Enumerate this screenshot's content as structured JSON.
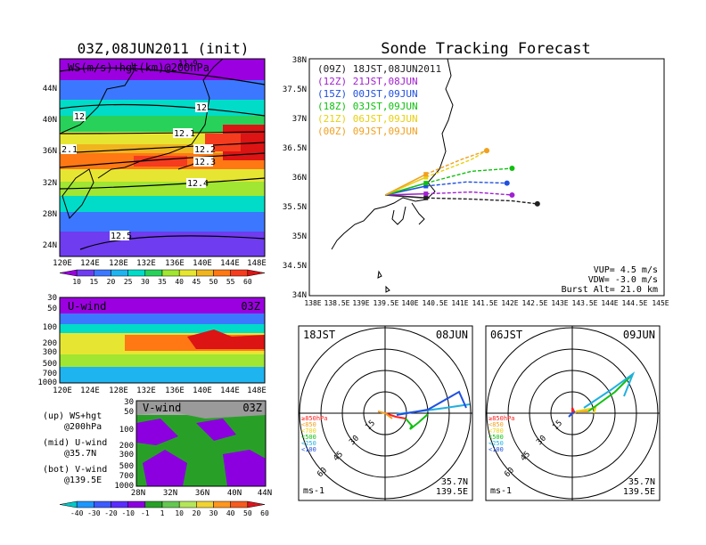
{
  "colors": {
    "scale": [
      "#9b00e0",
      "#6f3cf0",
      "#3c78ff",
      "#1eb4f0",
      "#00dcc8",
      "#28d25a",
      "#a0e632",
      "#e6e632",
      "#f0b41e",
      "#ff7814",
      "#f53c1e",
      "#dc1414"
    ],
    "vscale": [
      "#00c8c8",
      "#1e96ff",
      "#3c5aff",
      "#5a2dff",
      "#8c00e0",
      "#28a028",
      "#64c850",
      "#b4e65a",
      "#f0d232",
      "#ff961e",
      "#f55a1e",
      "#dc141e"
    ],
    "sondes": [
      "#202020",
      "#a020d0",
      "#2050e0",
      "#10c010",
      "#e8d010",
      "#f0a020"
    ]
  },
  "left": {
    "title": "03Z,08JUN2011 (init)",
    "map_label": "WS(m/s)+hgt(km)@200hPa",
    "top_contour": "11.9",
    "lat_ticks": [
      "44N",
      "40N",
      "36N",
      "32N",
      "28N",
      "24N"
    ],
    "lon_ticks": [
      "120E",
      "124E",
      "128E",
      "132E",
      "136E",
      "140E",
      "144E",
      "148E"
    ],
    "contours": [
      "12",
      "12",
      "12.1",
      "12.2",
      "12.3",
      "12.4",
      "12.5",
      "2.1"
    ],
    "scale_labels": [
      "10",
      "15",
      "20",
      "25",
      "30",
      "35",
      "40",
      "45",
      "50",
      "55",
      "60"
    ],
    "u_label": "U-wind",
    "u_time": "03Z",
    "u_levels": [
      "30",
      "50",
      "100",
      "200",
      "300",
      "500",
      "700",
      "1000"
    ],
    "v_label": "V-wind",
    "v_time": "03Z",
    "v_lat_ticks": [
      "28N",
      "32N",
      "36N",
      "40N",
      "44N"
    ],
    "legend": [
      "(up) WS+hgt",
      "@200hPa",
      "(mid) U-wind",
      "@35.7N",
      "(bot) V-wind",
      "@139.5E"
    ],
    "vscale_labels": [
      "-40",
      "-30",
      "-20",
      "-10",
      "-1",
      "1",
      "10",
      "20",
      "30",
      "40",
      "50",
      "60"
    ]
  },
  "right": {
    "title": "Sonde Tracking Forecast",
    "lat_ticks": [
      "38N",
      "37.5N",
      "37N",
      "36.5N",
      "36N",
      "35.5N",
      "35N",
      "34.5N",
      "34N"
    ],
    "lon_ticks": [
      "138E",
      "138.5E",
      "139E",
      "139.5E",
      "140E",
      "140.5E",
      "141E",
      "141.5E",
      "142E",
      "142.5E",
      "143E",
      "143.5E",
      "144E",
      "144.5E",
      "145E"
    ],
    "launches": [
      {
        "run": "(09Z)",
        "time": "18JST,08JUN2011"
      },
      {
        "run": "(12Z)",
        "time": "21JST,08JUN"
      },
      {
        "run": "(15Z)",
        "time": "00JST,09JUN"
      },
      {
        "run": "(18Z)",
        "time": "03JST,09JUN"
      },
      {
        "run": "(21Z)",
        "time": "06JST,09JUN"
      },
      {
        "run": "(00Z)",
        "time": "09JST,09JUN"
      }
    ],
    "params": [
      "VUP= 4.5 m/s",
      "VDW= -3.0 m/s",
      "Burst Alt= 21.0 km"
    ],
    "hodo1": {
      "time": "18JST",
      "date": "08JUN"
    },
    "hodo2": {
      "time": "06JST",
      "date": "09JUN"
    },
    "hodo_rings": [
      "15",
      "30",
      "45",
      "60"
    ],
    "hodo_levels": [
      "≥850hPa",
      "<850",
      "<700",
      "<500",
      "<250",
      "<100"
    ],
    "hodo_unit": "ms-1",
    "hodo_lat": "35.7N",
    "hodo_lon": "139.5E"
  },
  "chart_data": [
    {
      "type": "line",
      "title": "Sonde Tracking Forecast",
      "xlim": [
        138,
        145
      ],
      "ylim": [
        34,
        38
      ],
      "series": [
        {
          "name": "(09Z) 18JST,08JUN2011",
          "x": [
            139.5,
            140.3,
            141.2,
            142.0,
            142.5
          ],
          "y": [
            35.7,
            35.65,
            35.63,
            35.6,
            35.55
          ]
        },
        {
          "name": "(12Z) 21JST,08JUN",
          "x": [
            139.5,
            140.3,
            141.2,
            142.0
          ],
          "y": [
            35.7,
            35.72,
            35.75,
            35.7
          ]
        },
        {
          "name": "(15Z) 00JST,09JUN",
          "x": [
            139.5,
            140.3,
            141.1,
            141.9
          ],
          "y": [
            35.7,
            35.85,
            35.92,
            35.9
          ]
        },
        {
          "name": "(18Z) 03JST,09JUN",
          "x": [
            139.5,
            140.3,
            141.2,
            142.0
          ],
          "y": [
            35.7,
            35.9,
            36.1,
            36.15
          ]
        },
        {
          "name": "(21Z) 06JST,09JUN",
          "x": [
            139.5,
            140.3,
            141.2,
            141.5
          ],
          "y": [
            35.7,
            36.0,
            36.3,
            36.45
          ]
        },
        {
          "name": "(00Z) 09JST,09JUN",
          "x": [
            139.5,
            140.3,
            141.0,
            141.5
          ],
          "y": [
            35.7,
            36.05,
            36.3,
            36.45
          ]
        }
      ]
    }
  ]
}
